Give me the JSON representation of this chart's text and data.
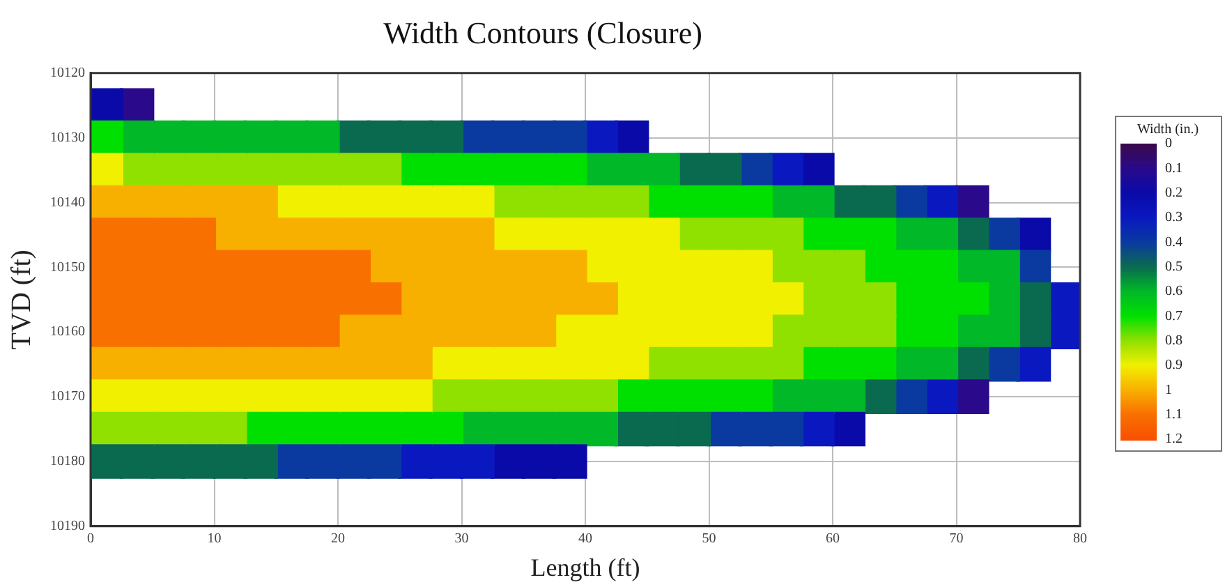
{
  "chart_data": {
    "type": "scatter",
    "title": "Width Contours (Closure)",
    "xlabel": "Length (ft)",
    "ylabel": "TVD (ft)",
    "clabel": "Width (in.)",
    "xlim": [
      0,
      80
    ],
    "xticks": [
      0,
      10,
      20,
      30,
      40,
      50,
      60,
      70,
      80
    ],
    "ylim": [
      10190,
      10120
    ],
    "yticks": [
      10120,
      10130,
      10140,
      10150,
      10160,
      10170,
      10180,
      10190
    ],
    "clim": [
      0,
      1.2
    ],
    "cticks": [
      0,
      0.1,
      0.2,
      0.3,
      0.4,
      0.5,
      0.6,
      0.7,
      0.8,
      0.9,
      1,
      1.1,
      1.2
    ],
    "grid": true,
    "marker": "square",
    "series": [
      {
        "x": [
          1.25,
          1.25,
          1.25,
          1.25,
          1.25,
          1.25,
          1.25,
          1.25,
          1.25,
          1.25,
          1.25,
          1.25
        ],
        "values": [
          10125,
          10130,
          10135,
          10140,
          10145,
          10150,
          10155,
          10160,
          10165,
          10170,
          10175,
          10180
        ],
        "cvalues": [
          0.2,
          0.7,
          0.9,
          1,
          1.1,
          1.1,
          1.1,
          1.1,
          1,
          0.9,
          0.8,
          0.5
        ],
        "colors": [
          "#0a0aa8",
          "#00e000",
          "#f0f000",
          "#f8b000",
          "#f87000",
          "#f87000",
          "#f87000",
          "#f87000",
          "#f8b000",
          "#f0f000",
          "#90e000",
          "#0a6a50"
        ]
      },
      {
        "x": [
          3.75,
          3.75,
          3.75,
          3.75,
          3.75,
          3.75,
          3.75,
          3.75,
          3.75,
          3.75,
          3.75,
          3.75
        ],
        "values": [
          10125,
          10130,
          10135,
          10140,
          10145,
          10150,
          10155,
          10160,
          10165,
          10170,
          10175,
          10180
        ],
        "cvalues": [
          0.1,
          0.6,
          0.8,
          1,
          1.1,
          1.1,
          1.1,
          1.1,
          1,
          0.9,
          0.8,
          0.5
        ],
        "colors": [
          "#2a0a8a",
          "#00b828",
          "#90e000",
          "#f8b000",
          "#f87000",
          "#f87000",
          "#f87000",
          "#f87000",
          "#f8b000",
          "#f0f000",
          "#90e000",
          "#0a6a50"
        ]
      },
      {
        "x": [
          6.25,
          6.25,
          6.25,
          6.25,
          6.25,
          6.25,
          6.25,
          6.25,
          6.25,
          6.25,
          6.25
        ],
        "values": [
          10130,
          10135,
          10140,
          10145,
          10150,
          10155,
          10160,
          10165,
          10170,
          10175,
          10180
        ],
        "cvalues": [
          0.6,
          0.8,
          1,
          1.1,
          1.1,
          1.1,
          1.1,
          1,
          0.9,
          0.8,
          0.5
        ],
        "colors": [
          "#00b828",
          "#90e000",
          "#f8b000",
          "#f87000",
          "#f87000",
          "#f87000",
          "#f87000",
          "#f8b000",
          "#f0f000",
          "#90e000",
          "#0a6a50"
        ]
      },
      {
        "x": [
          8.75,
          8.75,
          8.75,
          8.75,
          8.75,
          8.75,
          8.75,
          8.75,
          8.75,
          8.75,
          8.75
        ],
        "values": [
          10130,
          10135,
          10140,
          10145,
          10150,
          10155,
          10160,
          10165,
          10170,
          10175,
          10180
        ],
        "cvalues": [
          0.6,
          0.8,
          1,
          1.1,
          1.1,
          1.1,
          1.1,
          1,
          0.9,
          0.8,
          0.5
        ],
        "colors": [
          "#00b828",
          "#90e000",
          "#f8b000",
          "#f87000",
          "#f87000",
          "#f87000",
          "#f87000",
          "#f8b000",
          "#f0f000",
          "#90e000",
          "#0a6a50"
        ]
      },
      {
        "x": [
          11.25,
          11.25,
          11.25,
          11.25,
          11.25,
          11.25,
          11.25,
          11.25,
          11.25,
          11.25,
          11.25
        ],
        "values": [
          10130,
          10135,
          10140,
          10145,
          10150,
          10155,
          10160,
          10165,
          10170,
          10175,
          10180
        ],
        "cvalues": [
          0.6,
          0.8,
          1,
          1,
          1.1,
          1.1,
          1.1,
          1,
          0.9,
          0.8,
          0.5
        ],
        "colors": [
          "#00b828",
          "#90e000",
          "#f8b000",
          "#f8b000",
          "#f87000",
          "#f87000",
          "#f87000",
          "#f8b000",
          "#f0f000",
          "#90e000",
          "#0a6a50"
        ]
      },
      {
        "x": [
          13.75,
          13.75,
          13.75,
          13.75,
          13.75,
          13.75,
          13.75,
          13.75,
          13.75,
          13.75,
          13.75
        ],
        "values": [
          10130,
          10135,
          10140,
          10145,
          10150,
          10155,
          10160,
          10165,
          10170,
          10175,
          10180
        ],
        "cvalues": [
          0.6,
          0.8,
          1,
          1,
          1.1,
          1.1,
          1.1,
          1,
          0.9,
          0.7,
          0.5
        ],
        "colors": [
          "#00b828",
          "#90e000",
          "#f8b000",
          "#f8b000",
          "#f87000",
          "#f87000",
          "#f87000",
          "#f8b000",
          "#f0f000",
          "#00e000",
          "#0a6a50"
        ]
      },
      {
        "x": [
          16.25,
          16.25,
          16.25,
          16.25,
          16.25,
          16.25,
          16.25,
          16.25,
          16.25,
          16.25,
          16.25
        ],
        "values": [
          10130,
          10135,
          10140,
          10145,
          10150,
          10155,
          10160,
          10165,
          10170,
          10175,
          10180
        ],
        "cvalues": [
          0.6,
          0.8,
          0.9,
          1,
          1.1,
          1.1,
          1.1,
          1,
          0.9,
          0.7,
          0.4
        ],
        "colors": [
          "#00b828",
          "#90e000",
          "#f0f000",
          "#f8b000",
          "#f87000",
          "#f87000",
          "#f87000",
          "#f8b000",
          "#f0f000",
          "#00e000",
          "#0a3aa0"
        ]
      },
      {
        "x": [
          18.75,
          18.75,
          18.75,
          18.75,
          18.75,
          18.75,
          18.75,
          18.75,
          18.75,
          18.75,
          18.75
        ],
        "values": [
          10130,
          10135,
          10140,
          10145,
          10150,
          10155,
          10160,
          10165,
          10170,
          10175,
          10180
        ],
        "cvalues": [
          0.6,
          0.8,
          0.9,
          1,
          1.1,
          1.1,
          1.1,
          1,
          0.9,
          0.7,
          0.4
        ],
        "colors": [
          "#00b828",
          "#90e000",
          "#f0f000",
          "#f8b000",
          "#f87000",
          "#f87000",
          "#f87000",
          "#f8b000",
          "#f0f000",
          "#00e000",
          "#0a3aa0"
        ]
      },
      {
        "x": [
          21.25,
          21.25,
          21.25,
          21.25,
          21.25,
          21.25,
          21.25,
          21.25,
          21.25,
          21.25,
          21.25
        ],
        "values": [
          10130,
          10135,
          10140,
          10145,
          10150,
          10155,
          10160,
          10165,
          10170,
          10175,
          10180
        ],
        "cvalues": [
          0.5,
          0.8,
          0.9,
          1,
          1.1,
          1.1,
          1,
          1,
          0.9,
          0.7,
          0.4
        ],
        "colors": [
          "#0a6a50",
          "#90e000",
          "#f0f000",
          "#f8b000",
          "#f87000",
          "#f87000",
          "#f8b000",
          "#f8b000",
          "#f0f000",
          "#00e000",
          "#0a3aa0"
        ]
      },
      {
        "x": [
          23.75,
          23.75,
          23.75,
          23.75,
          23.75,
          23.75,
          23.75,
          23.75,
          23.75,
          23.75,
          23.75
        ],
        "values": [
          10130,
          10135,
          10140,
          10145,
          10150,
          10155,
          10160,
          10165,
          10170,
          10175,
          10180
        ],
        "cvalues": [
          0.5,
          0.8,
          0.9,
          1,
          1,
          1.1,
          1,
          1,
          0.9,
          0.7,
          0.4
        ],
        "colors": [
          "#0a6a50",
          "#90e000",
          "#f0f000",
          "#f8b000",
          "#f8b000",
          "#f87000",
          "#f8b000",
          "#f8b000",
          "#f0f000",
          "#00e000",
          "#0a3aa0"
        ]
      },
      {
        "x": [
          26.25,
          26.25,
          26.25,
          26.25,
          26.25,
          26.25,
          26.25,
          26.25,
          26.25,
          26.25,
          26.25
        ],
        "values": [
          10130,
          10135,
          10140,
          10145,
          10150,
          10155,
          10160,
          10165,
          10170,
          10175,
          10180
        ],
        "cvalues": [
          0.5,
          0.7,
          0.9,
          1,
          1,
          1,
          1,
          1,
          0.9,
          0.7,
          0.3
        ],
        "colors": [
          "#0a6a50",
          "#00e000",
          "#f0f000",
          "#f8b000",
          "#f8b000",
          "#f8b000",
          "#f8b000",
          "#f8b000",
          "#f0f000",
          "#00e000",
          "#0a18c0"
        ]
      },
      {
        "x": [
          28.75,
          28.75,
          28.75,
          28.75,
          28.75,
          28.75,
          28.75,
          28.75,
          28.75,
          28.75,
          28.75
        ],
        "values": [
          10130,
          10135,
          10140,
          10145,
          10150,
          10155,
          10160,
          10165,
          10170,
          10175,
          10180
        ],
        "cvalues": [
          0.5,
          0.7,
          0.9,
          1,
          1,
          1,
          1,
          0.9,
          0.8,
          0.7,
          0.3
        ],
        "colors": [
          "#0a6a50",
          "#00e000",
          "#f0f000",
          "#f8b000",
          "#f8b000",
          "#f8b000",
          "#f8b000",
          "#f0f000",
          "#90e000",
          "#00e000",
          "#0a18c0"
        ]
      },
      {
        "x": [
          31.25,
          31.25,
          31.25,
          31.25,
          31.25,
          31.25,
          31.25,
          31.25,
          31.25,
          31.25,
          31.25
        ],
        "values": [
          10130,
          10135,
          10140,
          10145,
          10150,
          10155,
          10160,
          10165,
          10170,
          10175,
          10180
        ],
        "cvalues": [
          0.4,
          0.7,
          0.9,
          1,
          1,
          1,
          1,
          0.9,
          0.8,
          0.6,
          0.3
        ],
        "colors": [
          "#0a3aa0",
          "#00e000",
          "#f0f000",
          "#f8b000",
          "#f8b000",
          "#f8b000",
          "#f8b000",
          "#f0f000",
          "#90e000",
          "#00b828",
          "#0a18c0"
        ]
      },
      {
        "x": [
          33.75,
          33.75,
          33.75,
          33.75,
          33.75,
          33.75,
          33.75,
          33.75,
          33.75,
          33.75,
          33.75
        ],
        "values": [
          10130,
          10135,
          10140,
          10145,
          10150,
          10155,
          10160,
          10165,
          10170,
          10175,
          10180
        ],
        "cvalues": [
          0.4,
          0.7,
          0.8,
          0.9,
          1,
          1,
          1,
          0.9,
          0.8,
          0.6,
          0.2
        ],
        "colors": [
          "#0a3aa0",
          "#00e000",
          "#90e000",
          "#f0f000",
          "#f8b000",
          "#f8b000",
          "#f8b000",
          "#f0f000",
          "#90e000",
          "#00b828",
          "#0a0aa8"
        ]
      },
      {
        "x": [
          36.25,
          36.25,
          36.25,
          36.25,
          36.25,
          36.25,
          36.25,
          36.25,
          36.25,
          36.25,
          36.25
        ],
        "values": [
          10130,
          10135,
          10140,
          10145,
          10150,
          10155,
          10160,
          10165,
          10170,
          10175,
          10180
        ],
        "cvalues": [
          0.4,
          0.7,
          0.8,
          0.9,
          1,
          1,
          1,
          0.9,
          0.8,
          0.6,
          0.2
        ],
        "colors": [
          "#0a3aa0",
          "#00e000",
          "#90e000",
          "#f0f000",
          "#f8b000",
          "#f8b000",
          "#f8b000",
          "#f0f000",
          "#90e000",
          "#00b828",
          "#0a0aa8"
        ]
      },
      {
        "x": [
          38.75,
          38.75,
          38.75,
          38.75,
          38.75,
          38.75,
          38.75,
          38.75,
          38.75,
          38.75,
          38.75
        ],
        "values": [
          10130,
          10135,
          10140,
          10145,
          10150,
          10155,
          10160,
          10165,
          10170,
          10175,
          10180
        ],
        "cvalues": [
          0.4,
          0.7,
          0.8,
          0.9,
          1,
          1,
          0.9,
          0.9,
          0.8,
          0.6,
          0.2
        ],
        "colors": [
          "#0a3aa0",
          "#00e000",
          "#90e000",
          "#f0f000",
          "#f8b000",
          "#f8b000",
          "#f0f000",
          "#f0f000",
          "#90e000",
          "#00b828",
          "#0a0aa8"
        ]
      },
      {
        "x": [
          41.25,
          41.25,
          41.25,
          41.25,
          41.25,
          41.25,
          41.25,
          41.25,
          41.25,
          41.25
        ],
        "values": [
          10130,
          10135,
          10140,
          10145,
          10150,
          10155,
          10160,
          10165,
          10170,
          10175
        ],
        "cvalues": [
          0.3,
          0.6,
          0.8,
          0.9,
          0.9,
          1,
          0.9,
          0.9,
          0.8,
          0.6
        ],
        "colors": [
          "#0a18c0",
          "#00b828",
          "#90e000",
          "#f0f000",
          "#f0f000",
          "#f8b000",
          "#f0f000",
          "#f0f000",
          "#90e000",
          "#00b828"
        ]
      },
      {
        "x": [
          43.75,
          43.75,
          43.75,
          43.75,
          43.75,
          43.75,
          43.75,
          43.75,
          43.75,
          43.75
        ],
        "values": [
          10130,
          10135,
          10140,
          10145,
          10150,
          10155,
          10160,
          10165,
          10170,
          10175
        ],
        "cvalues": [
          0.2,
          0.6,
          0.8,
          0.9,
          0.9,
          0.9,
          0.9,
          0.9,
          0.7,
          0.5
        ],
        "colors": [
          "#0a0aa8",
          "#00b828",
          "#90e000",
          "#f0f000",
          "#f0f000",
          "#f0f000",
          "#f0f000",
          "#f0f000",
          "#00e000",
          "#0a6a50"
        ]
      },
      {
        "x": [
          46.25,
          46.25,
          46.25,
          46.25,
          46.25,
          46.25,
          46.25,
          46.25,
          46.25
        ],
        "values": [
          10135,
          10140,
          10145,
          10150,
          10155,
          10160,
          10165,
          10170,
          10175
        ],
        "cvalues": [
          0.6,
          0.7,
          0.9,
          0.9,
          0.9,
          0.9,
          0.8,
          0.7,
          0.5
        ],
        "colors": [
          "#00b828",
          "#00e000",
          "#f0f000",
          "#f0f000",
          "#f0f000",
          "#f0f000",
          "#90e000",
          "#00e000",
          "#0a6a50"
        ]
      },
      {
        "x": [
          48.75,
          48.75,
          48.75,
          48.75,
          48.75,
          48.75,
          48.75,
          48.75,
          48.75
        ],
        "values": [
          10135,
          10140,
          10145,
          10150,
          10155,
          10160,
          10165,
          10170,
          10175
        ],
        "cvalues": [
          0.5,
          0.7,
          0.8,
          0.9,
          0.9,
          0.9,
          0.8,
          0.7,
          0.5
        ],
        "colors": [
          "#0a6a50",
          "#00e000",
          "#90e000",
          "#f0f000",
          "#f0f000",
          "#f0f000",
          "#90e000",
          "#00e000",
          "#0a6a50"
        ]
      },
      {
        "x": [
          51.25,
          51.25,
          51.25,
          51.25,
          51.25,
          51.25,
          51.25,
          51.25,
          51.25
        ],
        "values": [
          10135,
          10140,
          10145,
          10150,
          10155,
          10160,
          10165,
          10170,
          10175
        ],
        "cvalues": [
          0.5,
          0.7,
          0.8,
          0.9,
          0.9,
          0.9,
          0.8,
          0.7,
          0.4
        ],
        "colors": [
          "#0a6a50",
          "#00e000",
          "#90e000",
          "#f0f000",
          "#f0f000",
          "#f0f000",
          "#90e000",
          "#00e000",
          "#0a3aa0"
        ]
      },
      {
        "x": [
          53.75,
          53.75,
          53.75,
          53.75,
          53.75,
          53.75,
          53.75,
          53.75,
          53.75
        ],
        "values": [
          10135,
          10140,
          10145,
          10150,
          10155,
          10160,
          10165,
          10170,
          10175
        ],
        "cvalues": [
          0.4,
          0.7,
          0.8,
          0.9,
          0.9,
          0.9,
          0.8,
          0.7,
          0.4
        ],
        "colors": [
          "#0a3aa0",
          "#00e000",
          "#90e000",
          "#f0f000",
          "#f0f000",
          "#f0f000",
          "#90e000",
          "#00e000",
          "#0a3aa0"
        ]
      },
      {
        "x": [
          56.25,
          56.25,
          56.25,
          56.25,
          56.25,
          56.25,
          56.25,
          56.25,
          56.25
        ],
        "values": [
          10135,
          10140,
          10145,
          10150,
          10155,
          10160,
          10165,
          10170,
          10175
        ],
        "cvalues": [
          0.3,
          0.6,
          0.8,
          0.8,
          0.9,
          0.8,
          0.8,
          0.6,
          0.4
        ],
        "colors": [
          "#0a18c0",
          "#00b828",
          "#90e000",
          "#90e000",
          "#f0f000",
          "#90e000",
          "#90e000",
          "#00b828",
          "#0a3aa0"
        ]
      },
      {
        "x": [
          58.75,
          58.75,
          58.75,
          58.75,
          58.75,
          58.75,
          58.75,
          58.75,
          58.75
        ],
        "values": [
          10135,
          10140,
          10145,
          10150,
          10155,
          10160,
          10165,
          10170,
          10175
        ],
        "cvalues": [
          0.2,
          0.6,
          0.7,
          0.8,
          0.8,
          0.8,
          0.7,
          0.6,
          0.3
        ],
        "colors": [
          "#0a0aa8",
          "#00b828",
          "#00e000",
          "#90e000",
          "#90e000",
          "#90e000",
          "#00e000",
          "#00b828",
          "#0a18c0"
        ]
      },
      {
        "x": [
          61.25,
          61.25,
          61.25,
          61.25,
          61.25,
          61.25,
          61.25,
          61.25
        ],
        "values": [
          10140,
          10145,
          10150,
          10155,
          10160,
          10165,
          10170,
          10175
        ],
        "cvalues": [
          0.5,
          0.7,
          0.8,
          0.8,
          0.8,
          0.7,
          0.6,
          0.2
        ],
        "colors": [
          "#0a6a50",
          "#00e000",
          "#90e000",
          "#90e000",
          "#90e000",
          "#00e000",
          "#00b828",
          "#0a0aa8"
        ]
      },
      {
        "x": [
          63.75,
          63.75,
          63.75,
          63.75,
          63.75,
          63.75,
          63.75
        ],
        "values": [
          10140,
          10145,
          10150,
          10155,
          10160,
          10165,
          10170
        ],
        "cvalues": [
          0.5,
          0.7,
          0.7,
          0.8,
          0.8,
          0.7,
          0.5
        ],
        "colors": [
          "#0a6a50",
          "#00e000",
          "#00e000",
          "#90e000",
          "#90e000",
          "#00e000",
          "#0a6a50"
        ]
      },
      {
        "x": [
          66.25,
          66.25,
          66.25,
          66.25,
          66.25,
          66.25,
          66.25
        ],
        "values": [
          10140,
          10145,
          10150,
          10155,
          10160,
          10165,
          10170
        ],
        "cvalues": [
          0.4,
          0.6,
          0.7,
          0.7,
          0.7,
          0.6,
          0.4
        ],
        "colors": [
          "#0a3aa0",
          "#00b828",
          "#00e000",
          "#00e000",
          "#00e000",
          "#00b828",
          "#0a3aa0"
        ]
      },
      {
        "x": [
          68.75,
          68.75,
          68.75,
          68.75,
          68.75,
          68.75,
          68.75
        ],
        "values": [
          10140,
          10145,
          10150,
          10155,
          10160,
          10165,
          10170
        ],
        "cvalues": [
          0.3,
          0.6,
          0.7,
          0.7,
          0.7,
          0.6,
          0.3
        ],
        "colors": [
          "#0a18c0",
          "#00b828",
          "#00e000",
          "#00e000",
          "#00e000",
          "#00b828",
          "#0a18c0"
        ]
      },
      {
        "x": [
          71.25,
          71.25,
          71.25,
          71.25,
          71.25,
          71.25,
          71.25
        ],
        "values": [
          10140,
          10145,
          10150,
          10155,
          10160,
          10165,
          10170
        ],
        "cvalues": [
          0.1,
          0.5,
          0.6,
          0.7,
          0.6,
          0.5,
          0.1
        ],
        "colors": [
          "#2a0a8a",
          "#0a6a50",
          "#00b828",
          "#00e000",
          "#00b828",
          "#0a6a50",
          "#2a0a8a"
        ]
      },
      {
        "x": [
          73.75,
          73.75,
          73.75,
          73.75,
          73.75
        ],
        "values": [
          10145,
          10150,
          10155,
          10160,
          10165
        ],
        "cvalues": [
          0.4,
          0.6,
          0.6,
          0.6,
          0.4
        ],
        "colors": [
          "#0a3aa0",
          "#00b828",
          "#00b828",
          "#00b828",
          "#0a3aa0"
        ]
      },
      {
        "x": [
          76.25,
          76.25,
          76.25,
          76.25,
          76.25
        ],
        "values": [
          10145,
          10150,
          10155,
          10160,
          10165
        ],
        "cvalues": [
          0.2,
          0.4,
          0.5,
          0.5,
          0.3
        ],
        "colors": [
          "#0a0aa8",
          "#0a3aa0",
          "#0a6a50",
          "#0a6a50",
          "#0a18c0"
        ]
      },
      {
        "x": [
          78.75,
          78.75
        ],
        "values": [
          10155,
          10160
        ],
        "cvalues": [
          0.3,
          0.3
        ],
        "colors": [
          "#0a18c0",
          "#0a18c0"
        ]
      }
    ]
  }
}
